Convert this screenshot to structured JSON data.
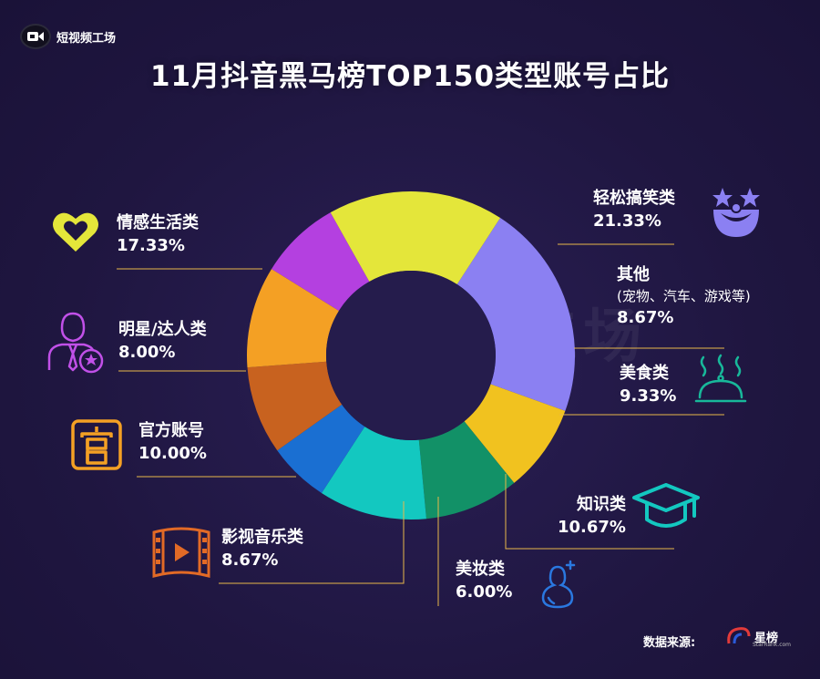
{
  "header": {
    "brand": "短视频工场",
    "title": "11月抖音黑马榜TOP150类型账号占比",
    "watermark": "短视频工场"
  },
  "footer": {
    "source_label": "数据来源:",
    "source_name": "星榜",
    "source_small": "StarRank.com"
  },
  "colors": {
    "background": "#1f1640",
    "leader": "#e8b84a"
  },
  "chart_data": {
    "type": "pie",
    "subtype": "donut",
    "title": "11月抖音黑马榜TOP150类型账号占比",
    "unit": "%",
    "slices": [
      {
        "label": "轻松搞笑类",
        "value": 21.33,
        "display": "21.33%",
        "color": "#8b80f2",
        "icon": "clown-face-icon"
      },
      {
        "label": "其他",
        "sublabel": "(宠物、汽车、游戏等)",
        "value": 8.67,
        "display": "8.67%",
        "color": "#f1c21f",
        "icon": ""
      },
      {
        "label": "美食类",
        "value": 9.33,
        "display": "9.33%",
        "color": "#129167",
        "icon": "food-cloche-icon"
      },
      {
        "label": "知识类",
        "value": 10.67,
        "display": "10.67%",
        "color": "#13c8c0",
        "icon": "graduation-cap-icon"
      },
      {
        "label": "美妆类",
        "value": 6.0,
        "display": "6.00%",
        "color": "#1a6fd2",
        "icon": "makeup-sponge-icon"
      },
      {
        "label": "影视音乐类",
        "value": 8.67,
        "display": "8.67%",
        "color": "#c8621f",
        "icon": "film-strip-icon"
      },
      {
        "label": "官方账号",
        "value": 10.0,
        "display": "10.00%",
        "color": "#f4a024",
        "icon": "official-seal-icon"
      },
      {
        "label": "明星/达人类",
        "value": 8.0,
        "display": "8.00%",
        "color": "#b440e0",
        "icon": "celebrity-star-icon"
      },
      {
        "label": "情感生活类",
        "value": 17.33,
        "display": "17.33%",
        "color": "#e4e63a",
        "icon": "heart-icon"
      }
    ]
  }
}
